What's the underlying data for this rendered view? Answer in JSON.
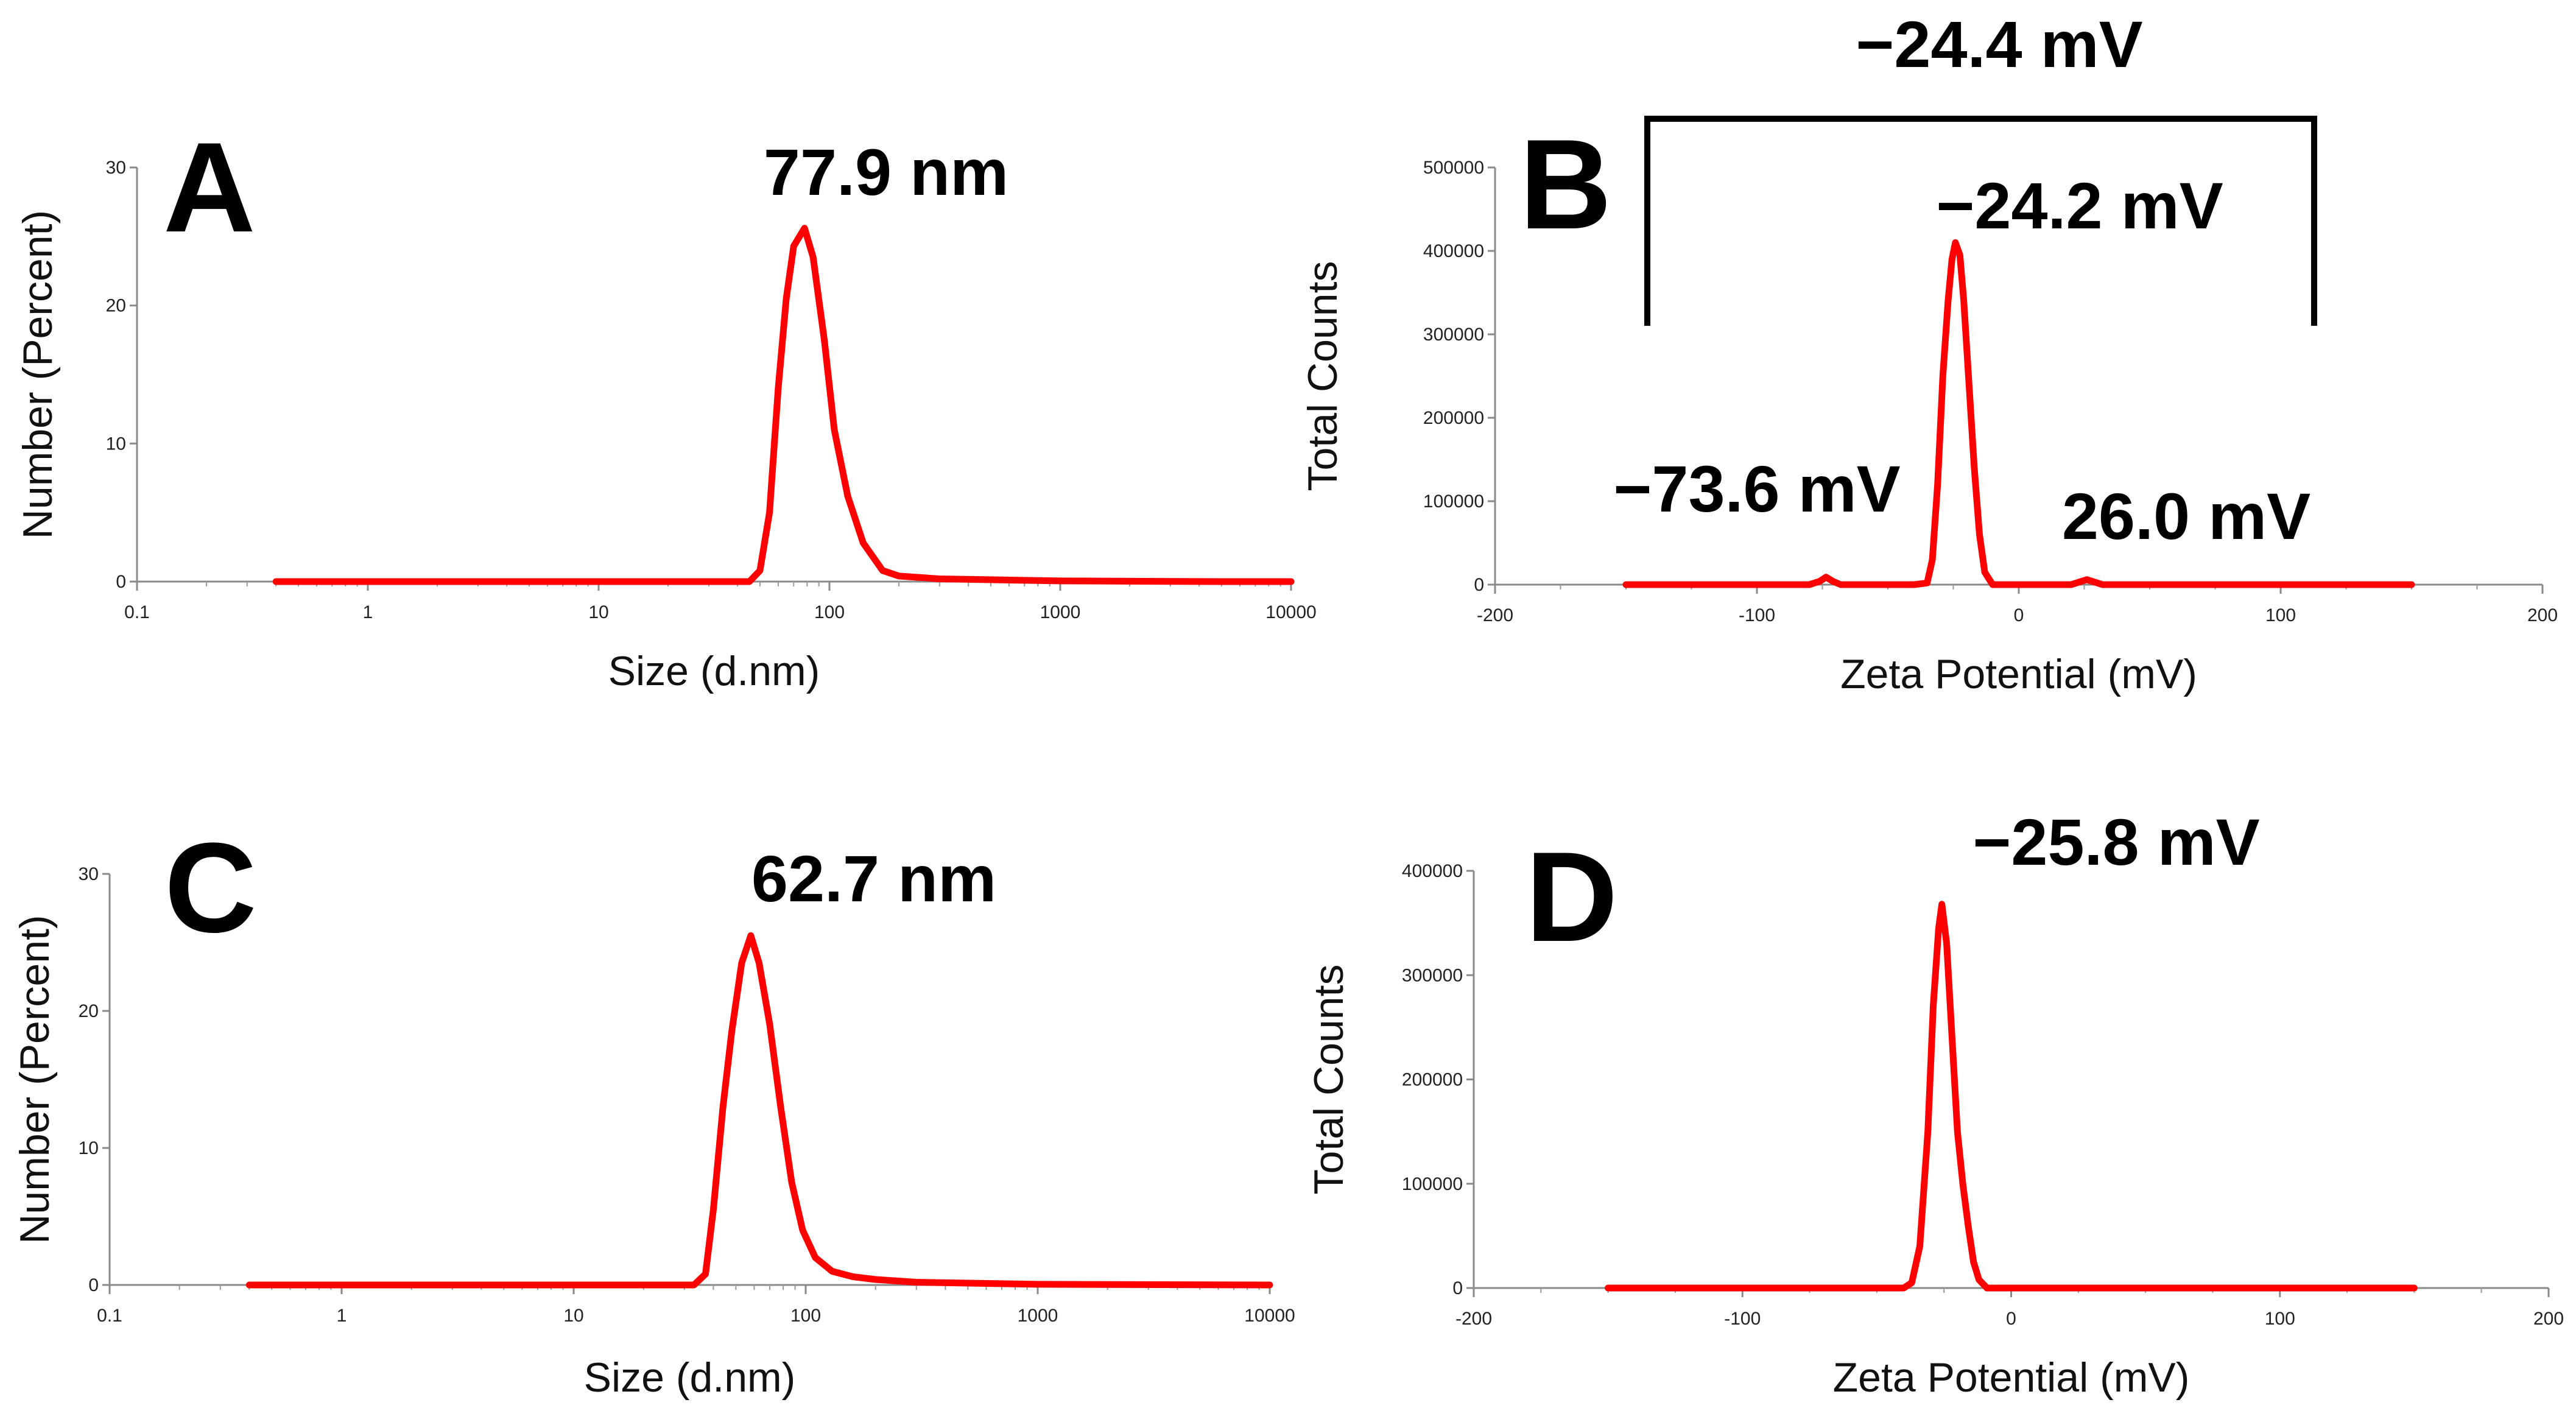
{
  "chart_data": [
    {
      "id": "A",
      "type": "line",
      "panel_label": "A",
      "xscale": "log",
      "xlabel": "Size (d.nm)",
      "ylabel": "Number (Percent)",
      "xlim": [
        0.1,
        10000
      ],
      "ylim": [
        0,
        30
      ],
      "xticks": [
        0.1,
        1,
        10,
        100,
        1000,
        10000
      ],
      "xtick_labels": [
        "0.1",
        "1",
        "10",
        "100",
        "1000",
        "10000"
      ],
      "yticks": [
        0,
        10,
        20,
        30
      ],
      "ytick_labels": [
        "0",
        "10",
        "20",
        "30"
      ],
      "color": "#ff0000",
      "x": [
        0.4,
        10,
        45,
        50,
        55,
        60,
        65,
        70,
        78,
        85,
        95,
        105,
        120,
        140,
        170,
        200,
        300,
        1000,
        5000,
        10000
      ],
      "y": [
        0,
        0,
        0,
        0.8,
        5,
        14,
        20.5,
        24.3,
        25.6,
        23.5,
        17.5,
        11,
        6.2,
        2.8,
        0.8,
        0.4,
        0.2,
        0.05,
        0,
        0
      ],
      "annotations": [
        {
          "text": "77.9 nm",
          "x": 77.9
        }
      ]
    },
    {
      "id": "B",
      "type": "line",
      "panel_label": "B",
      "xscale": "linear",
      "xlabel": "Zeta Potential (mV)",
      "ylabel": "Total Counts",
      "xlim": [
        -200,
        200
      ],
      "ylim": [
        0,
        500000
      ],
      "xticks": [
        -200,
        -100,
        0,
        100,
        200
      ],
      "xtick_labels": [
        "-200",
        "-100",
        "0",
        "100",
        "200"
      ],
      "yticks": [
        0,
        100000,
        200000,
        300000,
        400000,
        500000
      ],
      "ytick_labels": [
        "0",
        "100000",
        "200000",
        "300000",
        "400000",
        "500000"
      ],
      "color": "#ff0000",
      "x": [
        -150,
        -80,
        -76,
        -73.6,
        -71,
        -68,
        -40,
        -35,
        -33,
        -31,
        -29,
        -27,
        -25.5,
        -24.2,
        -22.5,
        -21,
        -19,
        -17,
        -15,
        -13,
        -10,
        20,
        23,
        26,
        29,
        32,
        150
      ],
      "y": [
        0,
        0,
        4000,
        9000,
        4000,
        0,
        0,
        2000,
        30000,
        120000,
        250000,
        340000,
        390000,
        410000,
        395000,
        340000,
        240000,
        140000,
        60000,
        15000,
        0,
        0,
        3000,
        6000,
        3000,
        0,
        0
      ],
      "annotations": [
        {
          "text": "−24.4 mV",
          "role": "bracket-total"
        },
        {
          "text": "−24.2 mV",
          "x": -24.2
        },
        {
          "text": "−73.6 mV",
          "x": -73.6
        },
        {
          "text": "26.0 mV",
          "x": 26.0
        }
      ]
    },
    {
      "id": "C",
      "type": "line",
      "panel_label": "C",
      "xscale": "log",
      "xlabel": "Size (d.nm)",
      "ylabel": "Number (Percent)",
      "xlim": [
        0.1,
        10000
      ],
      "ylim": [
        0,
        30
      ],
      "xticks": [
        0.1,
        1,
        10,
        100,
        1000,
        10000
      ],
      "xtick_labels": [
        "0.1",
        "1",
        "10",
        "100",
        "1000",
        "10000"
      ],
      "yticks": [
        0,
        10,
        20,
        30
      ],
      "ytick_labels": [
        "0",
        "10",
        "20",
        "30"
      ],
      "color": "#ff0000",
      "x": [
        0.4,
        10,
        33,
        37,
        40,
        44,
        48,
        53,
        58,
        63,
        70,
        78,
        87,
        97,
        110,
        130,
        160,
        200,
        300,
        1000,
        10000
      ],
      "y": [
        0,
        0,
        0,
        0.8,
        5.5,
        13,
        18.5,
        23.5,
        25.5,
        23.5,
        19,
        13,
        7.5,
        4,
        2,
        1,
        0.6,
        0.4,
        0.2,
        0.05,
        0
      ],
      "annotations": [
        {
          "text": "62.7 nm",
          "x": 62.7
        }
      ]
    },
    {
      "id": "D",
      "type": "line",
      "panel_label": "D",
      "xscale": "linear",
      "xlabel": "Zeta Potential (mV)",
      "ylabel": "Total Counts",
      "xlim": [
        -200,
        200
      ],
      "ylim": [
        0,
        400000
      ],
      "xticks": [
        -200,
        -100,
        0,
        100,
        200
      ],
      "xtick_labels": [
        "-200",
        "-100",
        "0",
        "100",
        "200"
      ],
      "yticks": [
        0,
        100000,
        200000,
        300000,
        400000
      ],
      "ytick_labels": [
        "0",
        "100000",
        "200000",
        "300000",
        "400000"
      ],
      "color": "#ff0000",
      "x": [
        -150,
        -40,
        -37,
        -34,
        -31,
        -29,
        -27,
        -25.8,
        -24,
        -22,
        -20,
        -18,
        -16,
        -14,
        -12,
        -9,
        150
      ],
      "y": [
        0,
        0,
        5000,
        40000,
        150000,
        270000,
        345000,
        368000,
        330000,
        240000,
        150000,
        100000,
        60000,
        25000,
        8000,
        0,
        0
      ],
      "annotations": [
        {
          "text": "−25.8 mV",
          "x": -25.8
        }
      ]
    }
  ]
}
